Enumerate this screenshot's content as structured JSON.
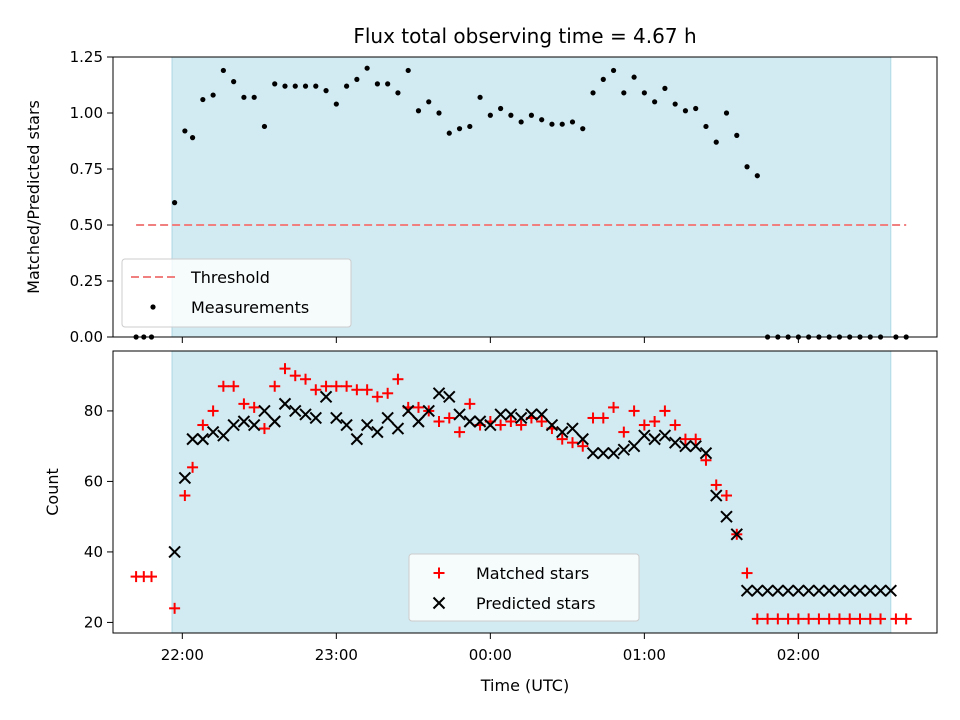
{
  "title": "Flux total observing time = 4.67 h",
  "colors": {
    "observing_span": "#add8e6",
    "threshold": "#f08080",
    "measurements": "#000000",
    "matched": "#ff0000",
    "predicted": "#000000"
  },
  "chart_data": [
    {
      "type": "scatter",
      "ylabel": "Matched/Predicted stars",
      "xlabel": "",
      "xlim": [
        "21:33",
        "02:54"
      ],
      "ylim": [
        0,
        1.25
      ],
      "yticks": [
        "0.00",
        "0.25",
        "0.50",
        "0.75",
        "1.00",
        "1.25"
      ],
      "shaded_span": [
        "21:56",
        "02:36"
      ],
      "legend_position": "lower-left",
      "threshold": {
        "name": "Threshold",
        "value": 0.5,
        "x_range": [
          "21:42",
          "02:42"
        ],
        "style": "dashed"
      },
      "series": [
        {
          "name": "Measurements",
          "x": [
            "21:42",
            "21:45",
            "21:48",
            "21:57",
            "22:01",
            "22:04",
            "22:08",
            "22:12",
            "22:16",
            "22:20",
            "22:24",
            "22:28",
            "22:32",
            "22:36",
            "22:40",
            "22:44",
            "22:48",
            "22:52",
            "22:56",
            "23:00",
            "23:04",
            "23:08",
            "23:12",
            "23:16",
            "23:20",
            "23:24",
            "23:28",
            "23:32",
            "23:36",
            "23:40",
            "23:44",
            "23:48",
            "23:52",
            "23:56",
            "00:00",
            "00:04",
            "00:08",
            "00:12",
            "00:16",
            "00:20",
            "00:24",
            "00:28",
            "00:32",
            "00:36",
            "00:40",
            "00:44",
            "00:48",
            "00:52",
            "00:56",
            "01:00",
            "01:04",
            "01:08",
            "01:12",
            "01:16",
            "01:20",
            "01:24",
            "01:28",
            "01:32",
            "01:36",
            "01:40",
            "01:44",
            "01:48",
            "01:52",
            "01:56",
            "02:00",
            "02:04",
            "02:08",
            "02:12",
            "02:16",
            "02:20",
            "02:24",
            "02:28",
            "02:32",
            "02:38",
            "02:42"
          ],
          "y": [
            0,
            0,
            0,
            0.6,
            0.92,
            0.89,
            1.06,
            1.08,
            1.19,
            1.14,
            1.07,
            1.07,
            0.94,
            1.13,
            1.12,
            1.12,
            1.12,
            1.12,
            1.1,
            1.04,
            1.12,
            1.15,
            1.2,
            1.13,
            1.13,
            1.09,
            1.19,
            1.01,
            1.05,
            1.0,
            0.91,
            0.93,
            0.94,
            1.07,
            0.99,
            1.02,
            0.99,
            0.96,
            0.99,
            0.97,
            0.95,
            0.95,
            0.96,
            0.93,
            1.09,
            1.15,
            1.19,
            1.09,
            1.16,
            1.09,
            1.05,
            1.11,
            1.04,
            1.01,
            1.02,
            0.94,
            0.87,
            1.0,
            0.9,
            0.76,
            0.72,
            0,
            0,
            0,
            0,
            0,
            0,
            0,
            0,
            0,
            0,
            0,
            0,
            0,
            0
          ]
        }
      ]
    },
    {
      "type": "scatter",
      "ylabel": "Count",
      "xlabel": "Time (UTC)",
      "xlim": [
        "21:33",
        "02:54"
      ],
      "ylim": [
        17,
        97
      ],
      "yticks": [
        "20",
        "40",
        "60",
        "80"
      ],
      "xticks": [
        "22:00",
        "23:00",
        "00:00",
        "01:00",
        "02:00"
      ],
      "shaded_span": [
        "21:56",
        "02:36"
      ],
      "legend_position": "lower-center",
      "series": [
        {
          "name": "Matched stars",
          "marker": "plus",
          "x": [
            "21:42",
            "21:45",
            "21:48",
            "21:57",
            "22:01",
            "22:04",
            "22:08",
            "22:12",
            "22:16",
            "22:20",
            "22:24",
            "22:28",
            "22:32",
            "22:36",
            "22:40",
            "22:44",
            "22:48",
            "22:52",
            "22:56",
            "23:00",
            "23:04",
            "23:08",
            "23:12",
            "23:16",
            "23:20",
            "23:24",
            "23:28",
            "23:32",
            "23:36",
            "23:40",
            "23:44",
            "23:48",
            "23:52",
            "23:56",
            "00:00",
            "00:04",
            "00:08",
            "00:12",
            "00:16",
            "00:20",
            "00:24",
            "00:28",
            "00:32",
            "00:36",
            "00:40",
            "00:44",
            "00:48",
            "00:52",
            "00:56",
            "01:00",
            "01:04",
            "01:08",
            "01:12",
            "01:16",
            "01:20",
            "01:24",
            "01:28",
            "01:32",
            "01:36",
            "01:40",
            "01:44",
            "01:48",
            "01:52",
            "01:56",
            "02:00",
            "02:04",
            "02:08",
            "02:12",
            "02:16",
            "02:20",
            "02:24",
            "02:28",
            "02:32",
            "02:38",
            "02:42"
          ],
          "y": [
            33,
            33,
            33,
            24,
            56,
            64,
            76,
            80,
            87,
            87,
            82,
            81,
            75,
            87,
            92,
            90,
            89,
            86,
            87,
            87,
            87,
            86,
            86,
            84,
            85,
            89,
            81,
            81,
            80,
            77,
            78,
            74,
            82,
            76,
            77,
            76,
            77,
            76,
            78,
            77,
            75,
            72,
            71,
            70,
            78,
            78,
            81,
            74,
            80,
            76,
            77,
            80,
            76,
            72,
            72,
            66,
            59,
            56,
            45,
            34,
            21,
            21,
            21,
            21,
            21,
            21,
            21,
            21,
            21,
            21,
            21,
            21,
            21,
            21,
            21
          ]
        },
        {
          "name": "Predicted stars",
          "marker": "x",
          "x": [
            "21:57",
            "22:01",
            "22:04",
            "22:08",
            "22:12",
            "22:16",
            "22:20",
            "22:24",
            "22:28",
            "22:32",
            "22:36",
            "22:40",
            "22:44",
            "22:48",
            "22:52",
            "22:56",
            "23:00",
            "23:04",
            "23:08",
            "23:12",
            "23:16",
            "23:20",
            "23:24",
            "23:28",
            "23:32",
            "23:36",
            "23:40",
            "23:44",
            "23:48",
            "23:52",
            "23:56",
            "00:00",
            "00:04",
            "00:08",
            "00:12",
            "00:16",
            "00:20",
            "00:24",
            "00:28",
            "00:32",
            "00:36",
            "00:40",
            "00:44",
            "00:48",
            "00:52",
            "00:56",
            "01:00",
            "01:04",
            "01:08",
            "01:12",
            "01:16",
            "01:20",
            "01:24",
            "01:28",
            "01:32",
            "01:36",
            "01:40",
            "01:44",
            "01:48",
            "01:52",
            "01:56",
            "02:00",
            "02:04",
            "02:08",
            "02:12",
            "02:16",
            "02:20",
            "02:24",
            "02:28",
            "02:32",
            "02:36"
          ],
          "y": [
            40,
            61,
            72,
            72,
            74,
            73,
            76,
            77,
            76,
            80,
            77,
            82,
            80,
            79,
            78,
            84,
            78,
            76,
            72,
            76,
            74,
            78,
            75,
            80,
            77,
            80,
            85,
            84,
            79,
            77,
            77,
            76,
            79,
            79,
            78,
            79,
            79,
            76,
            74,
            75,
            72,
            68,
            68,
            68,
            69,
            70,
            73,
            72,
            73,
            71,
            70,
            70,
            68,
            56,
            50,
            45,
            29,
            29,
            29,
            29,
            29,
            29,
            29,
            29,
            29,
            29,
            29,
            29,
            29,
            29,
            29
          ]
        }
      ]
    }
  ]
}
